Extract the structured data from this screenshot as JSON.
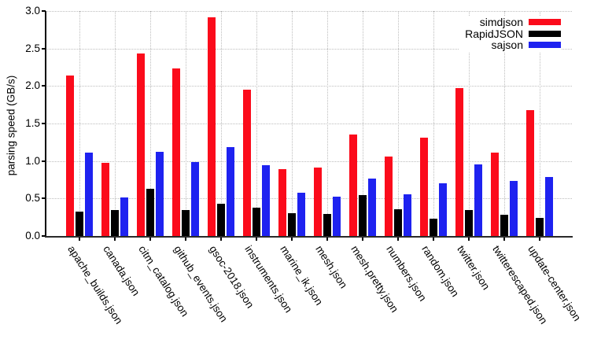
{
  "chart_data": {
    "type": "bar",
    "title": "",
    "xlabel": "",
    "ylabel": "parsing speed (GB/s)",
    "ylim": [
      0,
      3.0
    ],
    "ytick_step": 0.5,
    "ytick_labels": [
      "0.0",
      "0.5",
      "1.0",
      "1.5",
      "2.0",
      "2.5",
      "3.0"
    ],
    "grid": true,
    "legend_position": "top-right-inside",
    "categories": [
      "apache_builds.json",
      "canada.json",
      "citm_catalog.json",
      "github_events.json",
      "gsoc-2018.json",
      "instruments.json",
      "marine_ik.json",
      "mesh.json",
      "mesh.pretty.json",
      "numbers.json",
      "random.json",
      "twitter.json",
      "twitterescaped.json",
      "update-center.json"
    ],
    "series": [
      {
        "name": "simdjson",
        "color": "#fb0b1b",
        "values": [
          2.14,
          0.98,
          2.43,
          2.23,
          2.92,
          1.95,
          0.89,
          0.91,
          1.35,
          1.06,
          1.31,
          1.97,
          1.11,
          1.68
        ]
      },
      {
        "name": "RapidJSON",
        "color": "#000000",
        "values": [
          0.33,
          0.35,
          0.63,
          0.35,
          0.43,
          0.38,
          0.3,
          0.29,
          0.55,
          0.36,
          0.23,
          0.35,
          0.28,
          0.24
        ]
      },
      {
        "name": "sajson",
        "color": "#1e22f0",
        "values": [
          1.11,
          0.51,
          1.12,
          0.99,
          1.19,
          0.94,
          0.58,
          0.52,
          0.77,
          0.56,
          0.7,
          0.95,
          0.73,
          0.79
        ]
      }
    ]
  }
}
